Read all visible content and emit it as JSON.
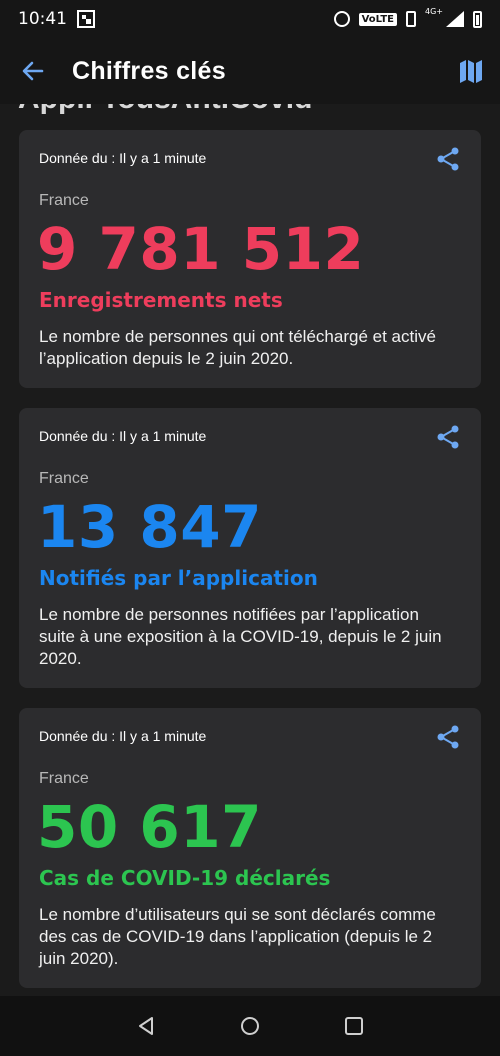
{
  "status_bar": {
    "time": "10:41",
    "network_label": "VoLTE",
    "signal_label": "4G+"
  },
  "app_bar": {
    "title": "Chiffres clés",
    "back_icon": "arrow-left-icon",
    "map_icon": "map-icon"
  },
  "peek_heading": "Appli TousAntiCovid",
  "cards": [
    {
      "date": "Donnée du : Il y a 1 minute",
      "region": "France",
      "value": "9 781 512",
      "label": "Enregistrements nets",
      "description": "Le nombre de personnes qui ont téléchargé et activé l’application depuis le 2 juin 2020.",
      "color": "#ee3d5c"
    },
    {
      "date": "Donnée du : Il y a 1 minute",
      "region": "France",
      "value": "13 847",
      "label": "Notifiés par l’application",
      "description": "Le nombre de personnes notifiées par l’application suite à une exposition à la COVID-19, depuis le 2 juin 2020.",
      "color": "#1b86f0"
    },
    {
      "date": "Donnée du : Il y a 1 minute",
      "region": "France",
      "value": "50 617",
      "label": "Cas de COVID-19 déclarés",
      "description": "Le nombre d’utilisateurs qui se sont déclarés comme des cas de COVID-19 dans l’application (depuis le 2 juin 2020).",
      "color": "#2cc550"
    }
  ],
  "colors": {
    "accent": "#6ea8f2",
    "card_bg": "#2c2c2e",
    "page_bg": "#1b1b1b"
  },
  "nav": {
    "back": "nav-back-icon",
    "home": "nav-home-icon",
    "recents": "nav-recents-icon"
  }
}
